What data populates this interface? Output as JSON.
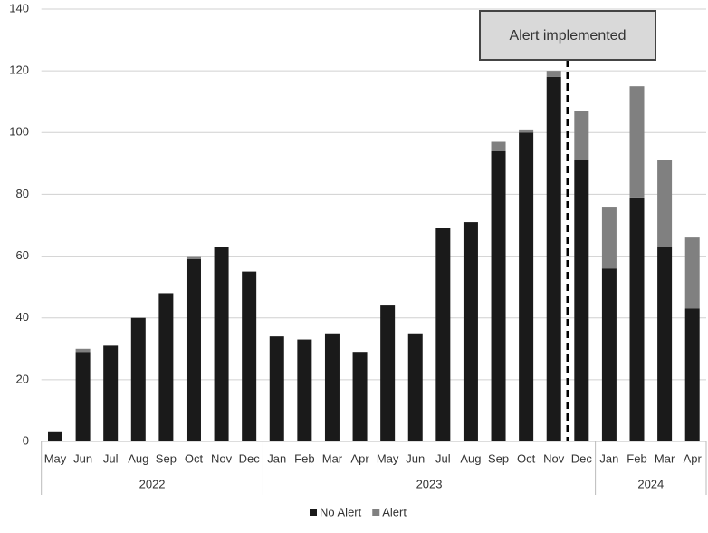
{
  "chart_data": {
    "type": "stacked_bar",
    "groups": [
      {
        "label": "2022",
        "categories": [
          "May",
          "Jun",
          "Jul",
          "Aug",
          "Sep",
          "Oct",
          "Nov",
          "Dec"
        ]
      },
      {
        "label": "2023",
        "categories": [
          "Jan",
          "Feb",
          "Mar",
          "Apr",
          "May",
          "Jun",
          "Jul",
          "Aug",
          "Sep",
          "Oct",
          "Nov",
          "Dec"
        ]
      },
      {
        "label": "2024",
        "categories": [
          "Jan",
          "Feb",
          "Mar",
          "Apr"
        ]
      }
    ],
    "series": [
      {
        "name": "No Alert",
        "color": "#1a1a1a",
        "values": [
          3,
          29,
          31,
          40,
          48,
          59,
          63,
          55,
          34,
          33,
          35,
          29,
          44,
          35,
          69,
          71,
          94,
          100,
          118,
          91,
          56,
          79,
          63,
          43
        ]
      },
      {
        "name": "Alert",
        "color": "#808080",
        "values": [
          0,
          1,
          0,
          0,
          0,
          1,
          0,
          0,
          0,
          0,
          0,
          0,
          0,
          0,
          0,
          0,
          3,
          1,
          2,
          16,
          20,
          36,
          28,
          23
        ]
      }
    ],
    "annotation": "Alert implemented",
    "ylim": [
      0,
      140
    ],
    "yticks": [
      0,
      20,
      40,
      60,
      80,
      100,
      120,
      140
    ],
    "grid": true
  }
}
